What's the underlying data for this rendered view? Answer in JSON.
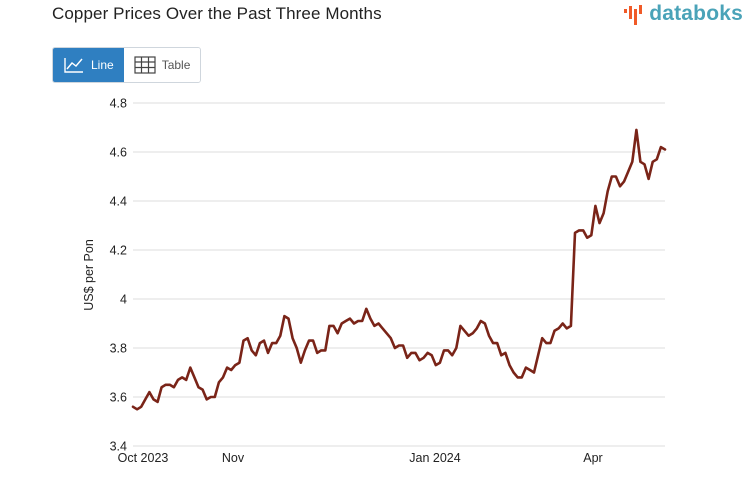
{
  "header": {
    "title": "Copper Prices Over the Past Three Months",
    "logo_text": "databoks"
  },
  "toolbar": {
    "line_label": "Line",
    "table_label": "Table"
  },
  "colors": {
    "line": "#7a2418",
    "accent": "#2f7fc1",
    "logo": "#4aa3b8"
  },
  "chart_data": {
    "type": "line",
    "ylabel": "US$ per Pon",
    "ylim": [
      3.4,
      4.8
    ],
    "yticks": [
      3.4,
      3.6,
      3.8,
      4,
      4.2,
      4.4,
      4.6,
      4.8
    ],
    "x_tick_labels": [
      "Oct 2023",
      "Nov",
      "Jan 2024",
      "Apr"
    ],
    "grid": true,
    "series": [
      {
        "values": [
          3.56,
          3.55,
          3.56,
          3.59,
          3.62,
          3.59,
          3.58,
          3.64,
          3.65,
          3.65,
          3.64,
          3.67,
          3.68,
          3.67,
          3.72,
          3.68,
          3.64,
          3.63,
          3.59,
          3.6,
          3.6,
          3.66,
          3.68,
          3.72,
          3.71,
          3.73,
          3.74,
          3.83,
          3.84,
          3.79,
          3.77,
          3.82,
          3.83,
          3.78,
          3.82,
          3.82,
          3.85,
          3.93,
          3.92,
          3.84,
          3.8,
          3.74,
          3.79,
          3.83,
          3.83,
          3.78,
          3.79,
          3.79,
          3.89,
          3.89,
          3.86,
          3.9,
          3.91,
          3.92,
          3.9,
          3.91,
          3.91,
          3.96,
          3.92,
          3.89,
          3.9,
          3.88,
          3.86,
          3.84,
          3.8,
          3.81,
          3.81,
          3.76,
          3.78,
          3.78,
          3.75,
          3.76,
          3.78,
          3.77,
          3.73,
          3.74,
          3.79,
          3.79,
          3.77,
          3.8,
          3.89,
          3.87,
          3.85,
          3.86,
          3.88,
          3.91,
          3.9,
          3.85,
          3.82,
          3.82,
          3.77,
          3.78,
          3.73,
          3.7,
          3.68,
          3.68,
          3.72,
          3.71,
          3.7,
          3.77,
          3.84,
          3.82,
          3.82,
          3.87,
          3.88,
          3.9,
          3.88,
          3.89,
          4.27,
          4.28,
          4.28,
          4.25,
          4.26,
          4.38,
          4.31,
          4.35,
          4.44,
          4.5,
          4.5,
          4.46,
          4.48,
          4.52,
          4.56,
          4.69,
          4.56,
          4.55,
          4.49,
          4.56,
          4.57,
          4.62,
          4.61
        ]
      }
    ]
  }
}
